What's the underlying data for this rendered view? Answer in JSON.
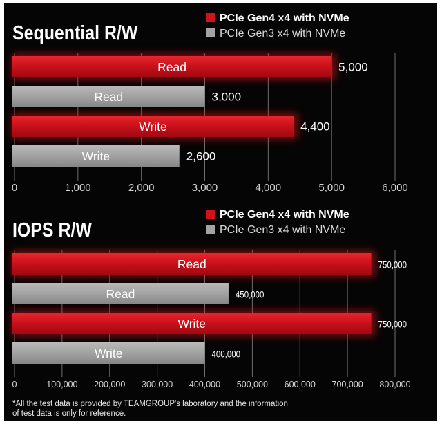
{
  "chart_data": [
    {
      "type": "bar",
      "orientation": "horizontal",
      "title": "Sequential R/W",
      "legend": {
        "placement": "top-right",
        "entries": [
          "PCIe Gen4 x4 with NVMe",
          "PCIe Gen3 x4 with NVMe"
        ]
      },
      "bars": [
        {
          "label": "Read",
          "series": "PCIe Gen4 x4 with NVMe",
          "value": 5000,
          "value_label": "5,000"
        },
        {
          "label": "Read",
          "series": "PCIe Gen3 x4 with NVMe",
          "value": 3000,
          "value_label": "3,000"
        },
        {
          "label": "Write",
          "series": "PCIe Gen4 x4 with NVMe",
          "value": 4400,
          "value_label": "4,400"
        },
        {
          "label": "Write",
          "series": "PCIe Gen3 x4 with NVMe",
          "value": 2600,
          "value_label": "2,600"
        }
      ],
      "xlim": [
        0,
        6000
      ],
      "ticks": [
        0,
        1000,
        2000,
        3000,
        4000,
        5000,
        6000
      ],
      "tick_labels": [
        "0",
        "1,000",
        "2,000",
        "3,000",
        "4,000",
        "5,000",
        "6,000"
      ],
      "grid": true
    },
    {
      "type": "bar",
      "orientation": "horizontal",
      "title": "IOPS R/W",
      "legend": {
        "placement": "top-right",
        "entries": [
          "PCIe Gen4 x4 with NVMe",
          "PCIe Gen3 x4 with NVMe"
        ]
      },
      "bars": [
        {
          "label": "Read",
          "series": "PCIe Gen4 x4 with NVMe",
          "value": 750000,
          "value_label": "750,000"
        },
        {
          "label": "Read",
          "series": "PCIe Gen3 x4 with NVMe",
          "value": 450000,
          "value_label": "450,000"
        },
        {
          "label": "Write",
          "series": "PCIe Gen4 x4 with NVMe",
          "value": 750000,
          "value_label": "750,000"
        },
        {
          "label": "Write",
          "series": "PCIe Gen3 x4 with NVMe",
          "value": 400000,
          "value_label": "400,000"
        }
      ],
      "xlim": [
        0,
        800000
      ],
      "ticks": [
        0,
        100000,
        200000,
        300000,
        400000,
        500000,
        600000,
        700000,
        800000
      ],
      "tick_labels": [
        "0",
        "100,000",
        "200,000",
        "300,000",
        "400,000",
        "500,000",
        "600,000",
        "700,000",
        "800,000"
      ],
      "grid": true
    }
  ],
  "colors": {
    "gen4": "#d0121b",
    "gen3": "#a3a3a3",
    "background": "#050505",
    "grid": "#6e6e6e",
    "text": "#ffffff"
  },
  "footnote": {
    "line1": "*All the test data is provided by TEAMGROUP's laboratory and the information",
    "line2": "of test data is only for reference."
  }
}
